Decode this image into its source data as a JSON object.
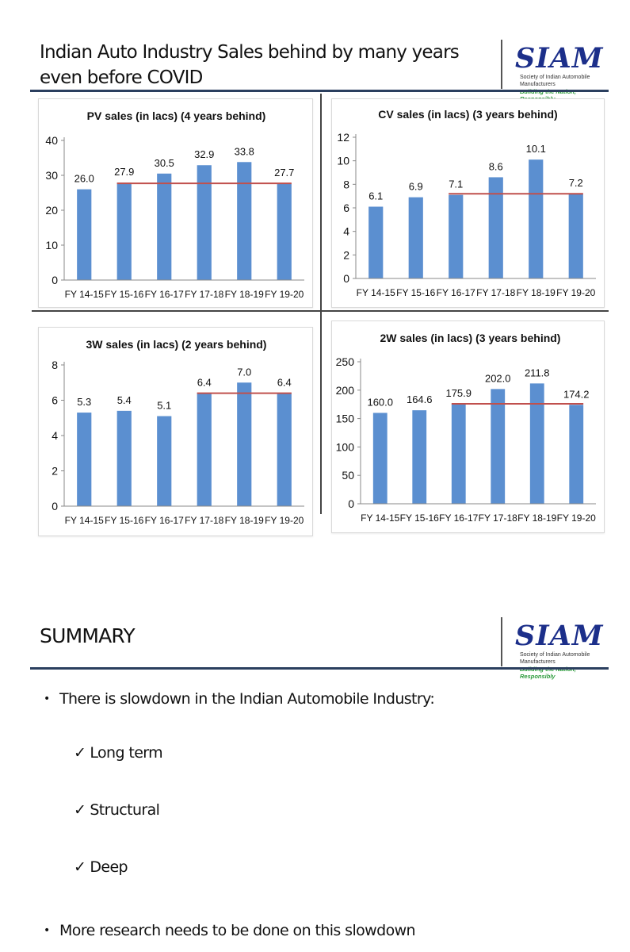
{
  "slide1": {
    "title": "Indian Auto Industry Sales behind by many years even before COVID"
  },
  "logo": {
    "name": "SIAM",
    "org": "Society of Indian Automobile Manufacturers",
    "tagline": "Building the Nation, Responsibly"
  },
  "colors": {
    "bar": "#5b8fd0",
    "reference_line": "#c0504d",
    "header_rule": "#2b3f5f",
    "logo": "#1c2f8a",
    "tagline": "#2a9a3a"
  },
  "chart_data": [
    {
      "type": "bar",
      "title": "PV sales (in lacs) (4 years behind)",
      "categories": [
        "FY 14-15",
        "FY 15-16",
        "FY 16-17",
        "FY 17-18",
        "FY 18-19",
        "FY 19-20"
      ],
      "values": [
        26.0,
        27.9,
        30.5,
        32.9,
        33.8,
        27.7
      ],
      "data_labels": [
        "26.0",
        "27.9",
        "30.5",
        "32.9",
        "33.8",
        "27.7"
      ],
      "yticks": [
        "0",
        "10",
        "20",
        "30",
        "40"
      ],
      "ylim": [
        0,
        40
      ],
      "reference_line": {
        "value": 27.7,
        "from": "FY 15-16",
        "to": "FY 19-20"
      },
      "grid": false
    },
    {
      "type": "bar",
      "title": "CV sales (in lacs) (3 years behind)",
      "categories": [
        "FY 14-15",
        "FY 15-16",
        "FY 16-17",
        "FY 17-18",
        "FY 18-19",
        "FY 19-20"
      ],
      "values": [
        6.1,
        6.9,
        7.1,
        8.6,
        10.1,
        7.2
      ],
      "data_labels": [
        "6.1",
        "6.9",
        "7.1",
        "8.6",
        "10.1",
        "7.2"
      ],
      "yticks": [
        "0",
        "2",
        "4",
        "6",
        "8",
        "10",
        "12"
      ],
      "ylim": [
        0,
        12
      ],
      "reference_line": {
        "value": 7.2,
        "from": "FY 16-17",
        "to": "FY 19-20"
      },
      "grid": false
    },
    {
      "type": "bar",
      "title": "3W sales (in lacs) (2 years behind)",
      "categories": [
        "FY 14-15",
        "FY 15-16",
        "FY 16-17",
        "FY 17-18",
        "FY 18-19",
        "FY 19-20"
      ],
      "values": [
        5.3,
        5.4,
        5.1,
        6.4,
        7.0,
        6.4
      ],
      "data_labels": [
        "5.3",
        "5.4",
        "5.1",
        "6.4",
        "7.0",
        "6.4"
      ],
      "yticks": [
        "0",
        "2",
        "4",
        "6",
        "8"
      ],
      "ylim": [
        0,
        8
      ],
      "reference_line": {
        "value": 6.4,
        "from": "FY 17-18",
        "to": "FY 19-20"
      },
      "grid": false
    },
    {
      "type": "bar",
      "title": "2W sales (in lacs) (3 years behind)",
      "categories": [
        "FY 14-15",
        "FY 15-16",
        "FY 16-17",
        "FY 17-18",
        "FY 18-19",
        "FY 19-20"
      ],
      "values": [
        160.0,
        164.6,
        175.9,
        202.0,
        211.8,
        174.2
      ],
      "data_labels": [
        "160.0",
        "164.6",
        "175.9",
        "202.0",
        "211.8",
        "174.2"
      ],
      "yticks": [
        "0",
        "50",
        "100",
        "150",
        "200",
        "250"
      ],
      "ylim": [
        0,
        250
      ],
      "reference_line": {
        "value": 175.9,
        "from": "FY 16-17",
        "to": "FY 19-20"
      },
      "grid": false
    }
  ],
  "slide2": {
    "title": "SUMMARY",
    "bullet_symbol": "•",
    "check_symbol": "✓",
    "bullets": [
      "There is slowdown in the Indian Automobile Industry:",
      "More research needs to be done on this slowdown"
    ],
    "sub_points": [
      "Long term",
      "Structural",
      "Deep"
    ]
  }
}
